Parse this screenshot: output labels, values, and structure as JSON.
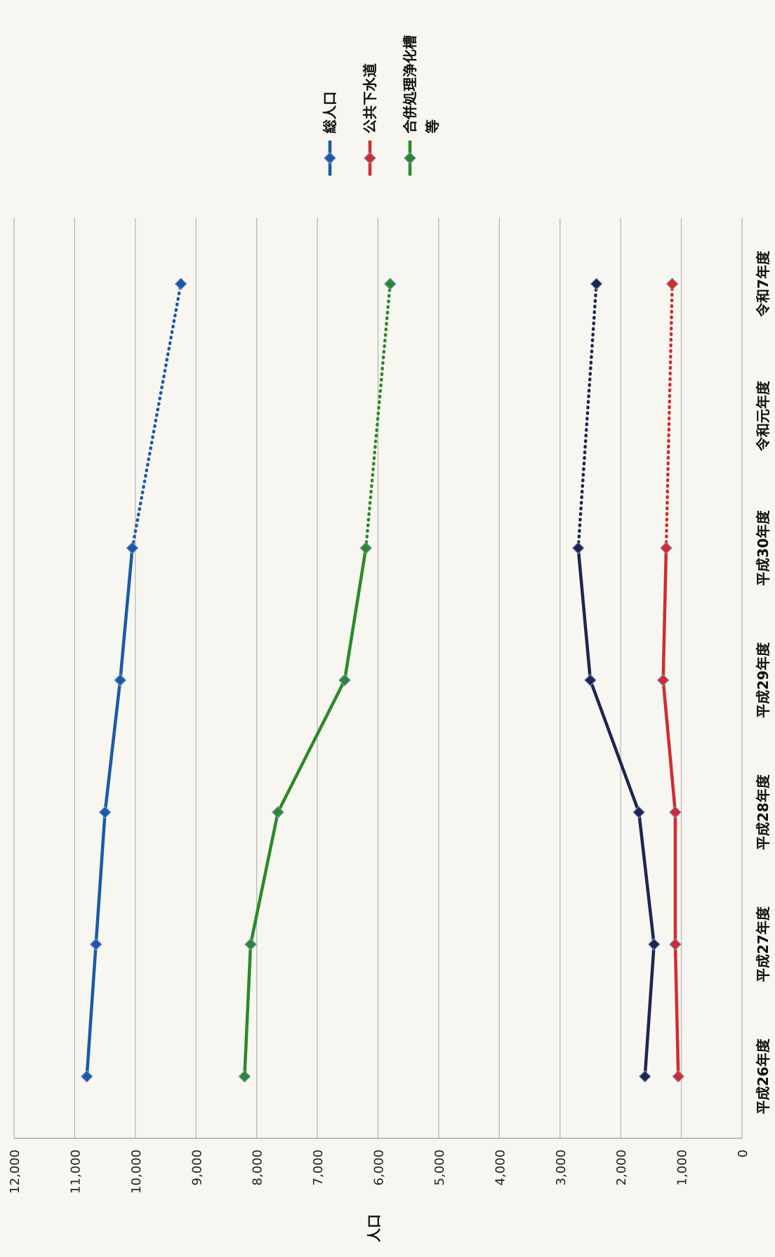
{
  "chart_data": {
    "type": "line",
    "orientation": "rotated-90",
    "title": "",
    "ylabel": "人口",
    "xlabel": "",
    "ylim": [
      0,
      12000
    ],
    "y_ticks": [
      0,
      1000,
      2000,
      3000,
      4000,
      5000,
      6000,
      7000,
      8000,
      9000,
      10000,
      11000,
      12000
    ],
    "y_tick_labels": [
      "0",
      "1,000",
      "2,000",
      "3,000",
      "4,000",
      "5,000",
      "6,000",
      "7,000",
      "8,000",
      "9,000",
      "10,000",
      "11,000",
      "12,000"
    ],
    "categories": [
      "平成26年度",
      "平成27年度",
      "平成28年度",
      "平成29年度",
      "平成30年度",
      "令和元年度",
      "令和7年度"
    ],
    "grid": true,
    "legend_position": "top",
    "series": [
      {
        "name": "総人口",
        "color": "#1a5aa8",
        "points": [
          [
            0,
            10800
          ],
          [
            1,
            10650
          ],
          [
            2,
            10500
          ],
          [
            3,
            10250
          ],
          [
            4,
            10050
          ],
          [
            6,
            9250
          ]
        ],
        "projected_from": 4
      },
      {
        "name": "公共下水道",
        "color": "#d42a2a",
        "points": [
          [
            0,
            1050
          ],
          [
            1,
            1100
          ],
          [
            2,
            1100
          ],
          [
            3,
            1300
          ],
          [
            4,
            1250
          ],
          [
            6,
            1150
          ]
        ],
        "projected_from": 4
      },
      {
        "name": "合併処理浄化槽等",
        "color": "#2a8a2a",
        "points": [
          [
            0,
            8200
          ],
          [
            1,
            8100
          ],
          [
            2,
            7650
          ],
          [
            3,
            6550
          ],
          [
            4,
            6200
          ],
          [
            6,
            5800
          ]
        ],
        "projected_from": 4
      },
      {
        "name": "",
        "color": "#1c2650",
        "points": [
          [
            0,
            1600
          ],
          [
            1,
            1450
          ],
          [
            2,
            1700
          ],
          [
            3,
            2500
          ],
          [
            4,
            2700
          ],
          [
            6,
            2400
          ]
        ],
        "projected_from": 4
      }
    ]
  }
}
